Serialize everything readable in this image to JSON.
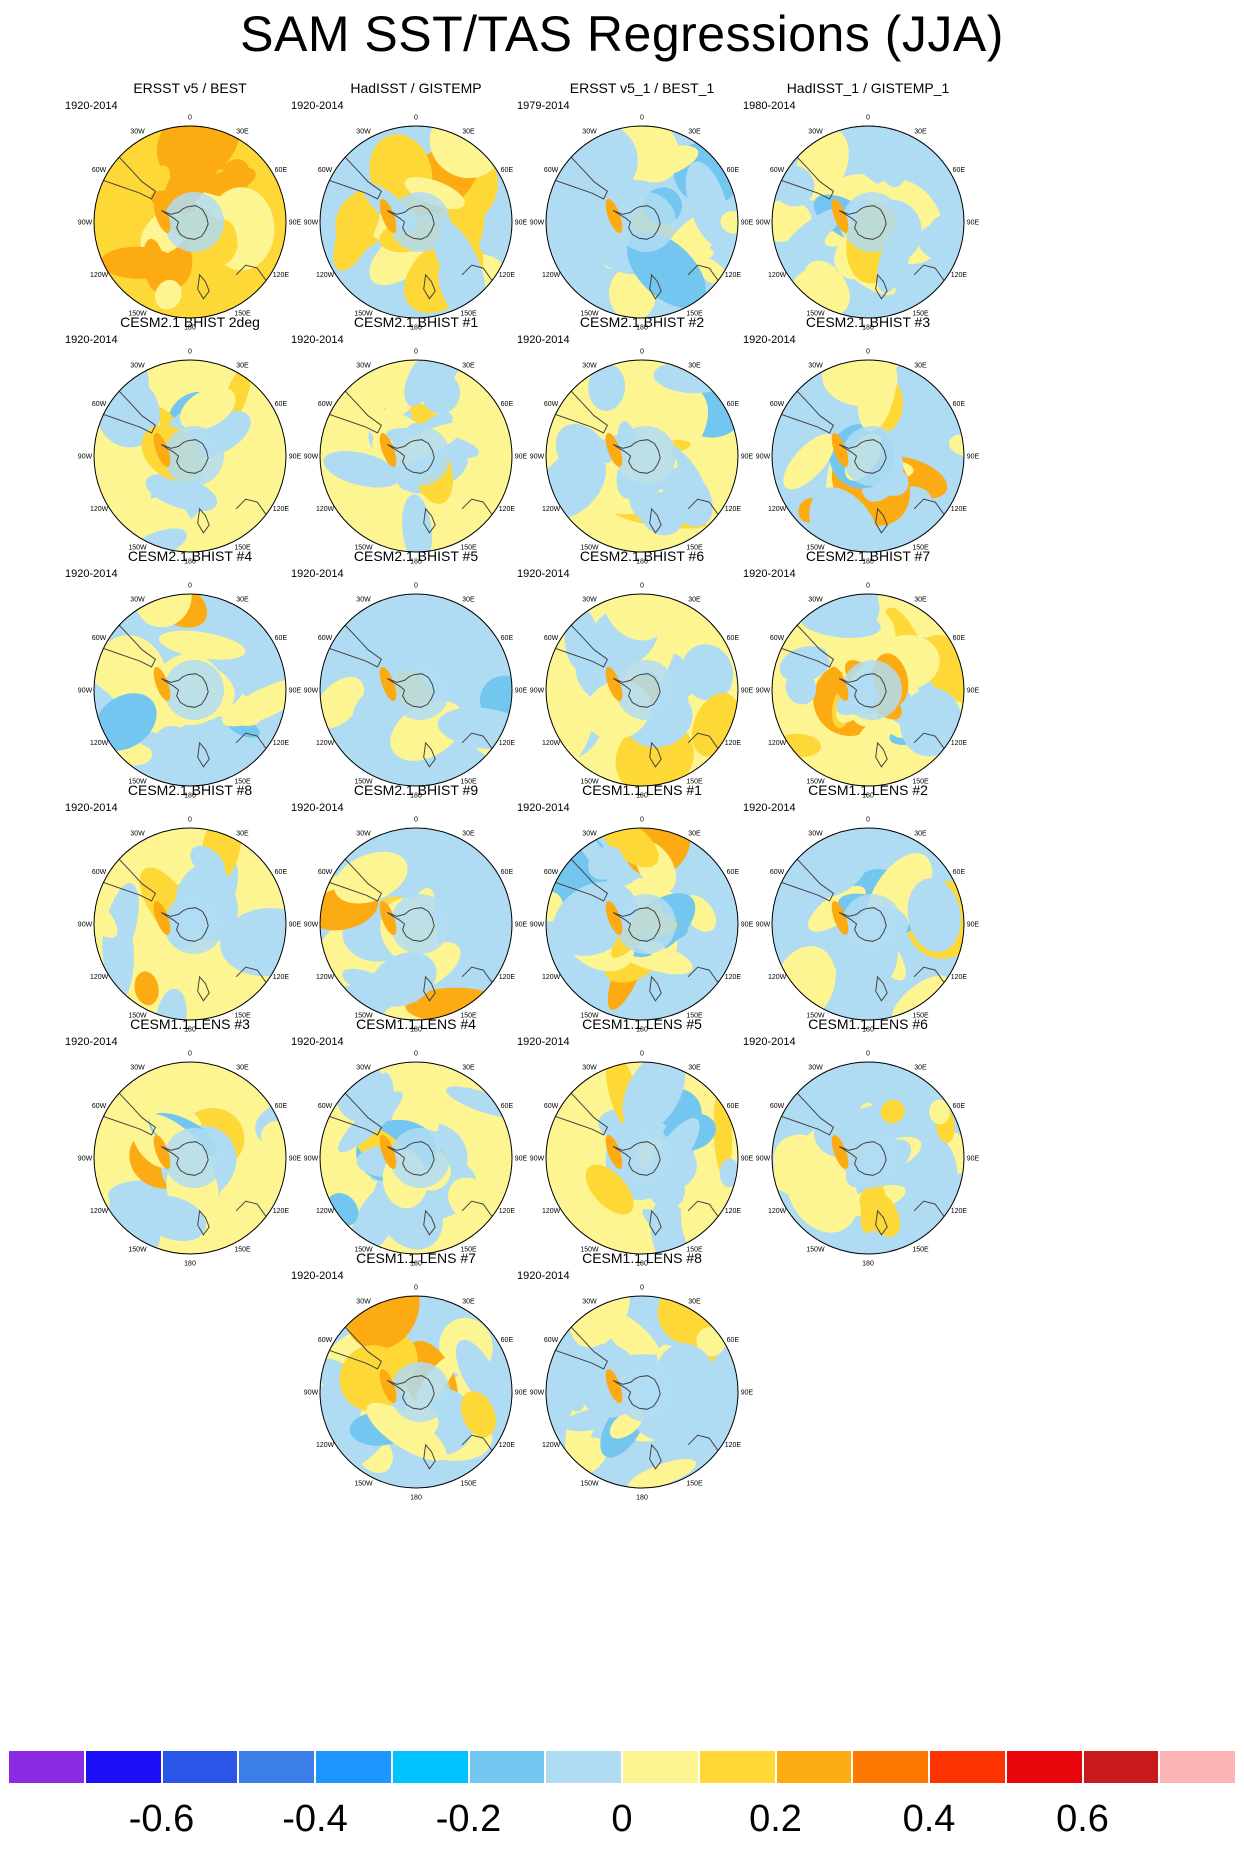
{
  "title": "SAM SST/TAS Regressions (JJA)",
  "chart_data": {
    "type": "heatmap",
    "projection": "south polar stereographic",
    "variable": "SAM regression of SST/TAS",
    "longitude_labels": [
      "0",
      "30E",
      "60E",
      "90E",
      "120E",
      "150E",
      "180",
      "150W",
      "120W",
      "90W",
      "60W",
      "30W"
    ],
    "panels": [
      {
        "title": "ERSST v5 / BEST",
        "period": "1920-2014"
      },
      {
        "title": "HadISST / GISTEMP",
        "period": "1920-2014"
      },
      {
        "title": "ERSST v5_1 / BEST_1",
        "period": "1979-2014"
      },
      {
        "title": "HadISST_1 / GISTEMP_1",
        "period": "1980-2014"
      },
      {
        "title": "CESM2.1 BHIST 2deg",
        "period": "1920-2014"
      },
      {
        "title": "CESM2.1 BHIST #1",
        "period": "1920-2014"
      },
      {
        "title": "CESM2.1 BHIST #2",
        "period": "1920-2014"
      },
      {
        "title": "CESM2.1 BHIST #3",
        "period": "1920-2014"
      },
      {
        "title": "CESM2.1 BHIST #4",
        "period": "1920-2014"
      },
      {
        "title": "CESM2.1 BHIST #5",
        "period": "1920-2014"
      },
      {
        "title": "CESM2.1 BHIST #6",
        "period": "1920-2014"
      },
      {
        "title": "CESM2.1 BHIST #7",
        "period": "1920-2014"
      },
      {
        "title": "CESM2.1 BHIST #8",
        "period": "1920-2014"
      },
      {
        "title": "CESM2.1 BHIST #9",
        "period": "1920-2014"
      },
      {
        "title": "CESM1.1 LENS #1",
        "period": "1920-2014"
      },
      {
        "title": "CESM1.1 LENS #2",
        "period": "1920-2014"
      },
      {
        "title": "CESM1.1 LENS #3",
        "period": "1920-2014"
      },
      {
        "title": "CESM1.1 LENS #4",
        "period": "1920-2014"
      },
      {
        "title": "CESM1.1 LENS #5",
        "period": "1920-2014"
      },
      {
        "title": "CESM1.1 LENS #6",
        "period": "1920-2014"
      },
      {
        "title": "CESM1.1 LENS #7",
        "period": "1920-2014"
      },
      {
        "title": "CESM1.1 LENS #8",
        "period": "1920-2014"
      }
    ],
    "colorbar": {
      "colors": [
        "#8b2be2",
        "#1a0ff5",
        "#2a55e6",
        "#3c7ee8",
        "#1e96ff",
        "#00c2ff",
        "#72c6f0",
        "#b0dcf3",
        "#fdf592",
        "#fdd836",
        "#fdab12",
        "#fd7a02",
        "#fd3402",
        "#e6050b",
        "#c81a1a",
        "#fcb3b4"
      ],
      "tick_labels": [
        "-0.6",
        "-0.4",
        "-0.2",
        "0",
        "0.2",
        "0.4",
        "0.6"
      ]
    }
  }
}
